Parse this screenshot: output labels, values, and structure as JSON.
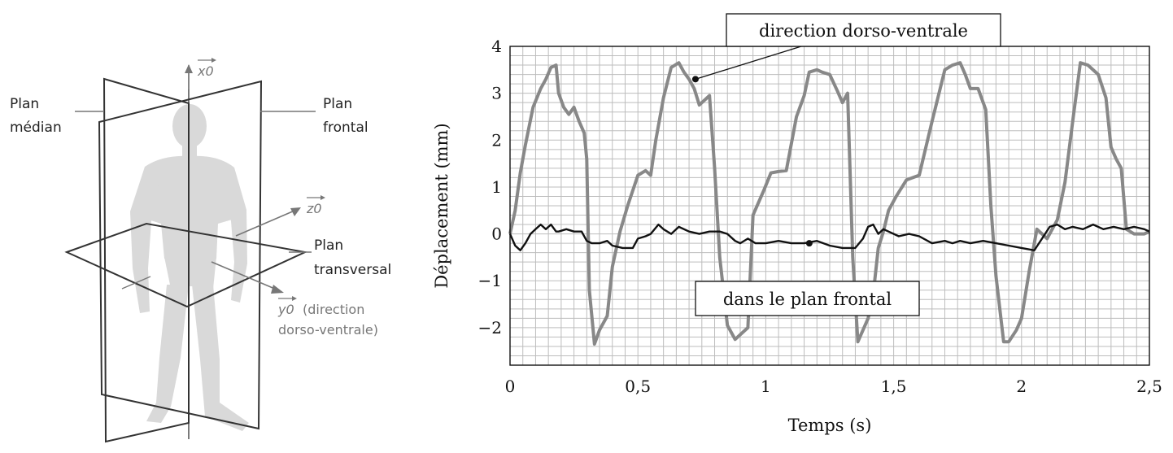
{
  "diagram": {
    "axis_x0": "x0",
    "axis_z0": "z0",
    "axis_y0": "y0",
    "plan_median": [
      "Plan",
      "médian"
    ],
    "plan_frontal": [
      "Plan",
      "frontal"
    ],
    "plan_transversal": [
      "Plan",
      "transversal"
    ],
    "y0_note": [
      "(direction",
      "dorso-ventrale)"
    ]
  },
  "colors": {
    "dorso_ventral": "#888888",
    "frontal": "#111111",
    "grid": "#bdbdbd",
    "figure": "#d9d9d9"
  },
  "chart_data": {
    "type": "line",
    "xlabel": "Temps (s)",
    "ylabel": "Déplacement (mm)",
    "xlim": [
      0,
      2.5
    ],
    "ylim": [
      -2.8,
      4
    ],
    "xticks": [
      0,
      0.5,
      1,
      1.5,
      2,
      2.5
    ],
    "xtick_labels": [
      "0",
      "0,5",
      "1",
      "1,5",
      "2",
      "2,5"
    ],
    "yticks": [
      -2,
      -1,
      0,
      1,
      2,
      3,
      4
    ],
    "ytick_labels": [
      "−2",
      "−1",
      "0",
      "1",
      "2",
      "3",
      "4"
    ],
    "grid": true,
    "series": [
      {
        "name": "direction dorso-ventrale",
        "x": [
          0,
          0.02,
          0.04,
          0.06,
          0.09,
          0.12,
          0.14,
          0.16,
          0.18,
          0.19,
          0.21,
          0.23,
          0.25,
          0.27,
          0.29,
          0.3,
          0.31,
          0.33,
          0.35,
          0.38,
          0.4,
          0.43,
          0.46,
          0.5,
          0.53,
          0.55,
          0.57,
          0.6,
          0.63,
          0.66,
          0.68,
          0.7,
          0.72,
          0.74,
          0.76,
          0.78,
          0.8,
          0.82,
          0.85,
          0.88,
          0.9,
          0.93,
          0.95,
          0.97,
          0.99,
          1.02,
          1.05,
          1.08,
          1.12,
          1.15,
          1.17,
          1.2,
          1.22,
          1.25,
          1.28,
          1.3,
          1.32,
          1.34,
          1.36,
          1.38,
          1.4,
          1.42,
          1.44,
          1.46,
          1.48,
          1.51,
          1.55,
          1.6,
          1.65,
          1.7,
          1.73,
          1.76,
          1.78,
          1.8,
          1.83,
          1.86,
          1.88,
          1.9,
          1.93,
          1.95,
          1.98,
          2.0,
          2.03,
          2.06,
          2.1,
          2.14,
          2.17,
          2.2,
          2.23,
          2.26,
          2.3,
          2.33,
          2.35,
          2.37,
          2.39,
          2.41,
          2.44,
          2.46,
          2.48,
          2.5
        ],
        "y": [
          0,
          0.5,
          1.3,
          1.9,
          2.7,
          3.1,
          3.3,
          3.55,
          3.6,
          3.0,
          2.7,
          2.55,
          2.7,
          2.4,
          2.15,
          1.6,
          -1.2,
          -2.35,
          -2.05,
          -1.75,
          -0.7,
          0.05,
          0.6,
          1.25,
          1.35,
          1.25,
          2.0,
          2.9,
          3.55,
          3.65,
          3.45,
          3.3,
          3.1,
          2.75,
          2.85,
          2.95,
          1.4,
          -0.5,
          -1.95,
          -2.25,
          -2.15,
          -2.0,
          0.4,
          0.65,
          0.9,
          1.3,
          1.33,
          1.35,
          2.5,
          2.95,
          3.45,
          3.5,
          3.45,
          3.4,
          3.05,
          2.8,
          3.0,
          -0.5,
          -2.3,
          -2.05,
          -1.8,
          -1.3,
          -0.3,
          0.05,
          0.5,
          0.8,
          1.15,
          1.25,
          2.4,
          3.5,
          3.6,
          3.65,
          3.4,
          3.1,
          3.1,
          2.65,
          0.6,
          -0.9,
          -2.3,
          -2.3,
          -2.05,
          -1.8,
          -0.8,
          0.1,
          -0.1,
          0.3,
          1.1,
          2.4,
          3.65,
          3.6,
          3.4,
          2.9,
          1.85,
          1.6,
          1.4,
          0.1,
          0,
          0,
          0,
          0.05
        ],
        "color": "#888888"
      },
      {
        "name": "dans le plan frontal",
        "x": [
          0,
          0.02,
          0.04,
          0.06,
          0.08,
          0.1,
          0.12,
          0.14,
          0.16,
          0.18,
          0.19,
          0.22,
          0.25,
          0.28,
          0.3,
          0.32,
          0.35,
          0.38,
          0.4,
          0.44,
          0.48,
          0.5,
          0.53,
          0.55,
          0.58,
          0.6,
          0.63,
          0.66,
          0.7,
          0.74,
          0.78,
          0.82,
          0.85,
          0.88,
          0.9,
          0.93,
          0.96,
          1.0,
          1.05,
          1.1,
          1.15,
          1.2,
          1.25,
          1.3,
          1.35,
          1.38,
          1.4,
          1.42,
          1.44,
          1.46,
          1.48,
          1.52,
          1.56,
          1.6,
          1.65,
          1.7,
          1.73,
          1.76,
          1.8,
          1.85,
          1.9,
          1.95,
          2.0,
          2.05,
          2.08,
          2.11,
          2.14,
          2.17,
          2.2,
          2.24,
          2.28,
          2.32,
          2.36,
          2.4,
          2.44,
          2.48,
          2.5
        ],
        "y": [
          0,
          -0.25,
          -0.35,
          -0.2,
          0,
          0.1,
          0.2,
          0.1,
          0.2,
          0.05,
          0.05,
          0.1,
          0.05,
          0.05,
          -0.15,
          -0.2,
          -0.2,
          -0.15,
          -0.25,
          -0.3,
          -0.3,
          -0.1,
          -0.05,
          0,
          0.2,
          0.1,
          0,
          0.15,
          0.05,
          0,
          0.05,
          0.05,
          0,
          -0.15,
          -0.2,
          -0.1,
          -0.2,
          -0.2,
          -0.15,
          -0.2,
          -0.2,
          -0.15,
          -0.25,
          -0.3,
          -0.3,
          -0.1,
          0.15,
          0.2,
          0,
          0.1,
          0.05,
          -0.05,
          0,
          -0.05,
          -0.2,
          -0.15,
          -0.2,
          -0.15,
          -0.2,
          -0.15,
          -0.2,
          -0.25,
          -0.3,
          -0.35,
          -0.1,
          0.15,
          0.2,
          0.1,
          0.15,
          0.1,
          0.2,
          0.1,
          0.15,
          0.1,
          0.15,
          0.1,
          0.05
        ],
        "color": "#111111"
      }
    ],
    "annotations": [
      {
        "text": "direction dorso-ventrale",
        "series": 0,
        "point": [
          0.725,
          3.3
        ]
      },
      {
        "text": "dans le plan frontal",
        "series": 1,
        "point": [
          1.17,
          -0.2
        ]
      }
    ]
  }
}
